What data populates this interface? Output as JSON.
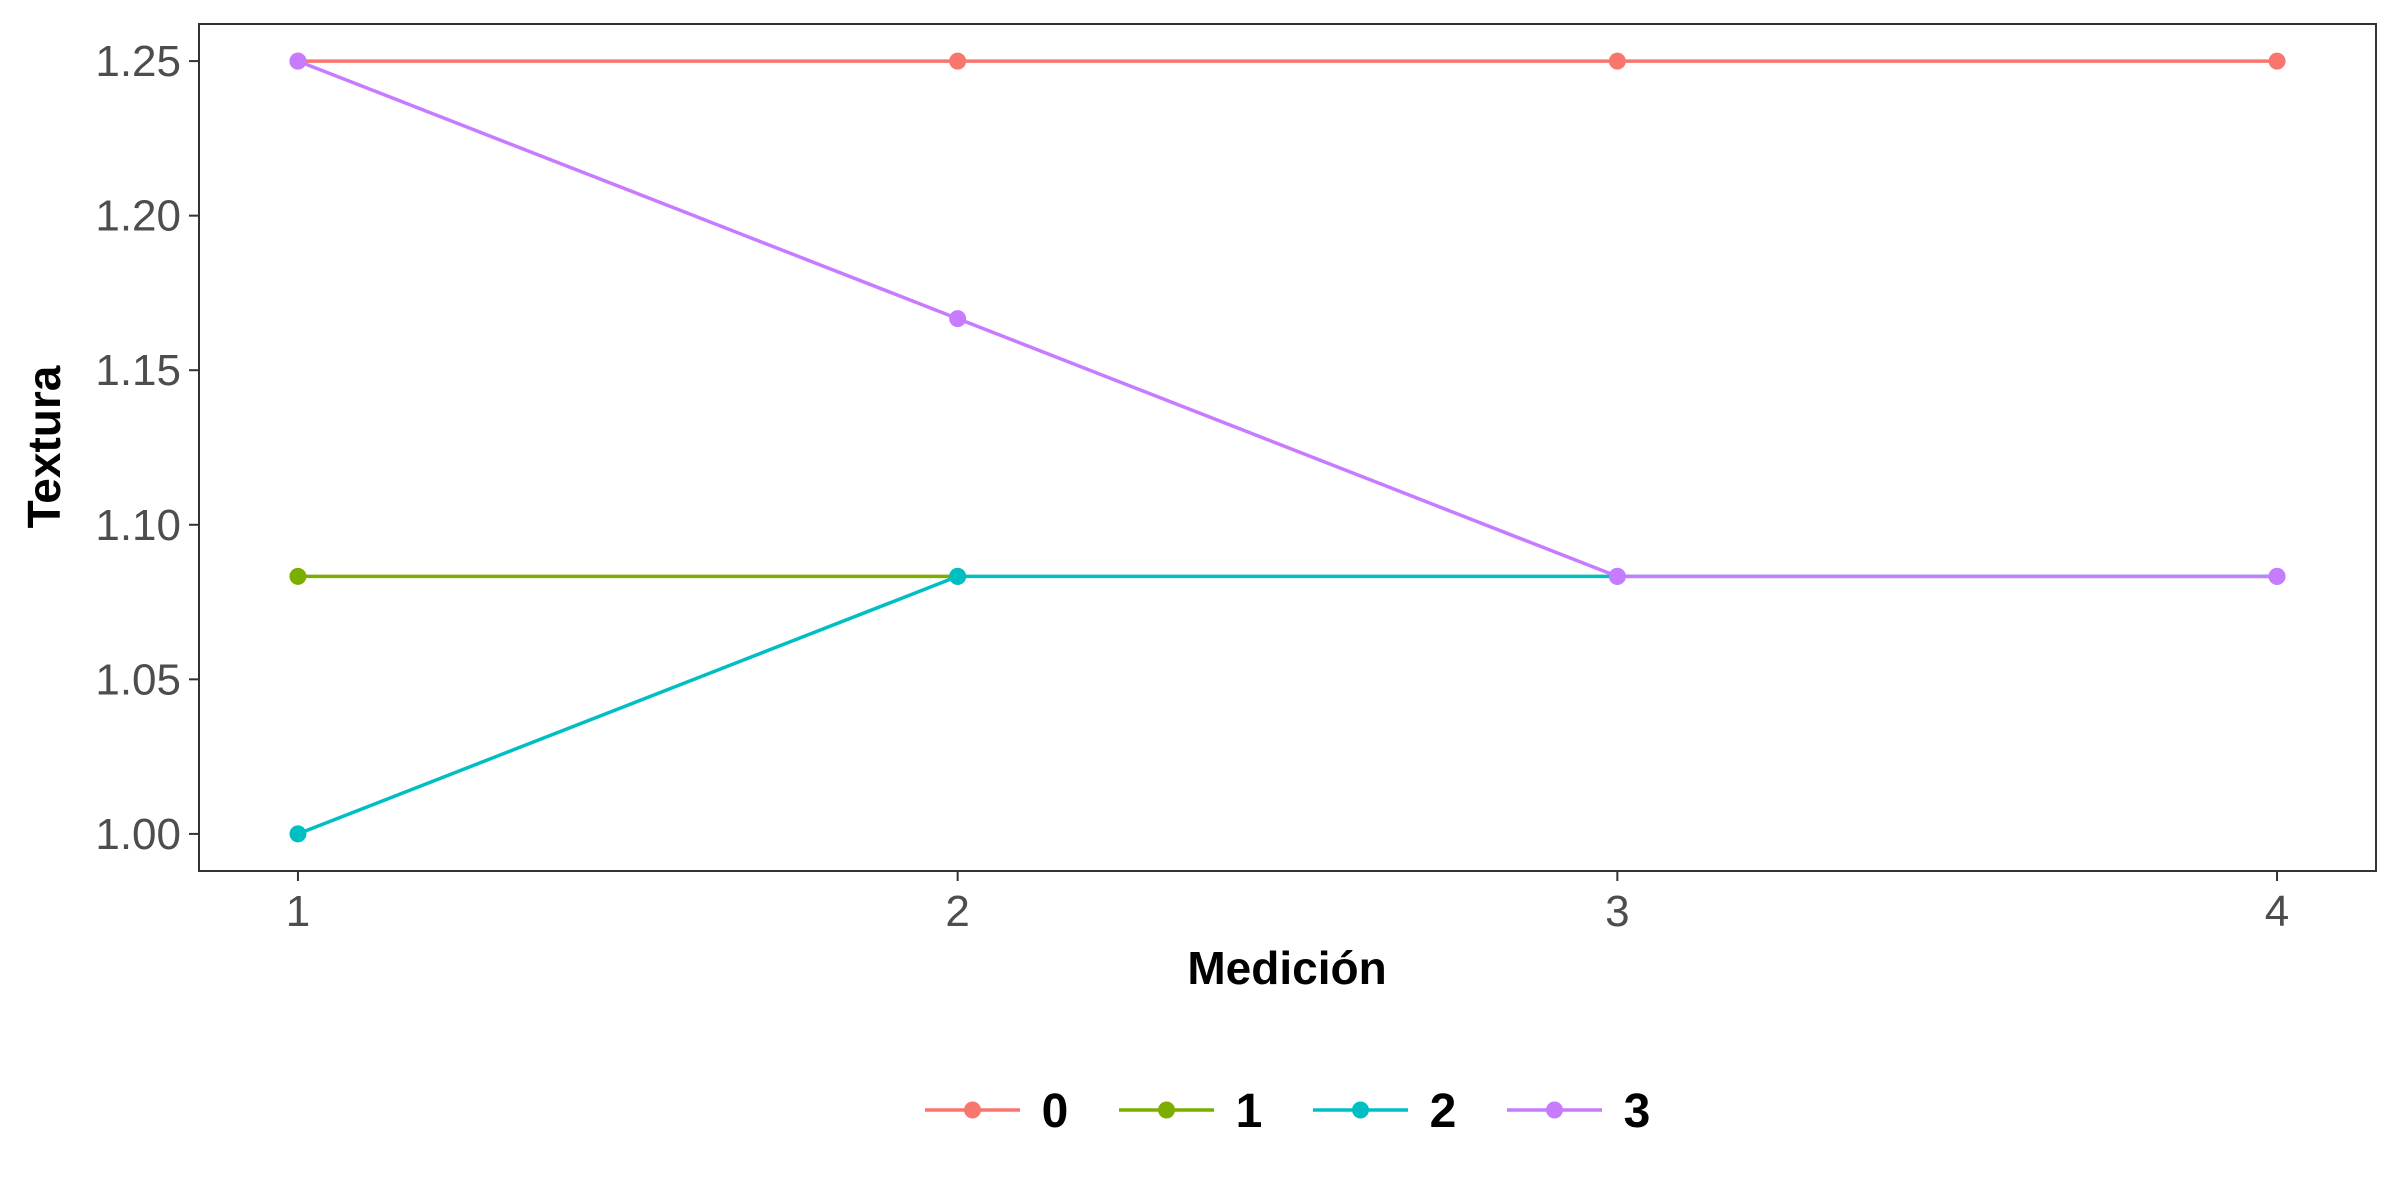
{
  "chart_data": {
    "type": "line",
    "xlabel": "Medición",
    "ylabel": "Textura",
    "x": [
      1,
      2,
      3,
      4
    ],
    "xlim": [
      0.85,
      4.15
    ],
    "ylim": [
      0.988,
      1.262
    ],
    "x_ticks": [
      1,
      2,
      3,
      4
    ],
    "y_ticks": [
      1.0,
      1.05,
      1.1,
      1.15,
      1.2,
      1.25
    ],
    "y_tick_labels": [
      "1.00",
      "1.05",
      "1.10",
      "1.15",
      "1.20",
      "1.25"
    ],
    "grid": false,
    "legend_position": "bottom",
    "series": [
      {
        "name": "0",
        "color": "#F8766D",
        "values": [
          1.25,
          1.25,
          1.25,
          1.25
        ]
      },
      {
        "name": "1",
        "color": "#7CAE00",
        "values": [
          1.0833,
          1.0833,
          null,
          null
        ]
      },
      {
        "name": "2",
        "color": "#00BFC4",
        "values": [
          1.0,
          1.0833,
          1.0833,
          1.0833
        ]
      },
      {
        "name": "3",
        "color": "#C77CFF",
        "values": [
          1.25,
          1.1667,
          1.0833,
          1.0833
        ]
      }
    ]
  }
}
